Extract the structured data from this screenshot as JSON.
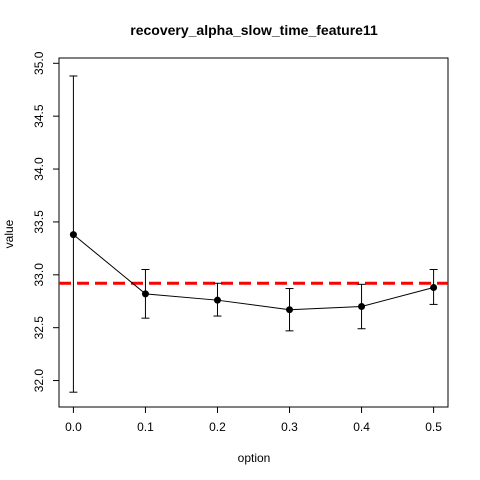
{
  "chart_data": {
    "type": "line",
    "title": "recovery_alpha_slow_time_feature11",
    "xlabel": "option",
    "ylabel": "value",
    "x": [
      0.0,
      0.1,
      0.2,
      0.3,
      0.4,
      0.5
    ],
    "x_tick_labels": [
      "0.0",
      "0.1",
      "0.2",
      "0.3",
      "0.4",
      "0.5"
    ],
    "y_ticks": [
      32.0,
      32.5,
      33.0,
      33.5,
      34.0,
      34.5,
      35.0
    ],
    "y_tick_labels": [
      "32.0",
      "32.5",
      "33.0",
      "33.5",
      "34.0",
      "34.5",
      "35.0"
    ],
    "xlim": [
      -0.02,
      0.52
    ],
    "ylim": [
      31.75,
      35.05
    ],
    "series": [
      {
        "values": [
          33.38,
          32.82,
          32.76,
          32.67,
          32.7,
          32.88
        ],
        "err_low": [
          31.89,
          32.59,
          32.61,
          32.47,
          32.49,
          32.72
        ],
        "err_high": [
          34.88,
          33.05,
          32.92,
          32.87,
          32.91,
          33.05
        ]
      }
    ],
    "reference_line": {
      "y": 32.92,
      "color": "#ff0000",
      "style": "dashed"
    },
    "grid": false,
    "legend": "none"
  }
}
